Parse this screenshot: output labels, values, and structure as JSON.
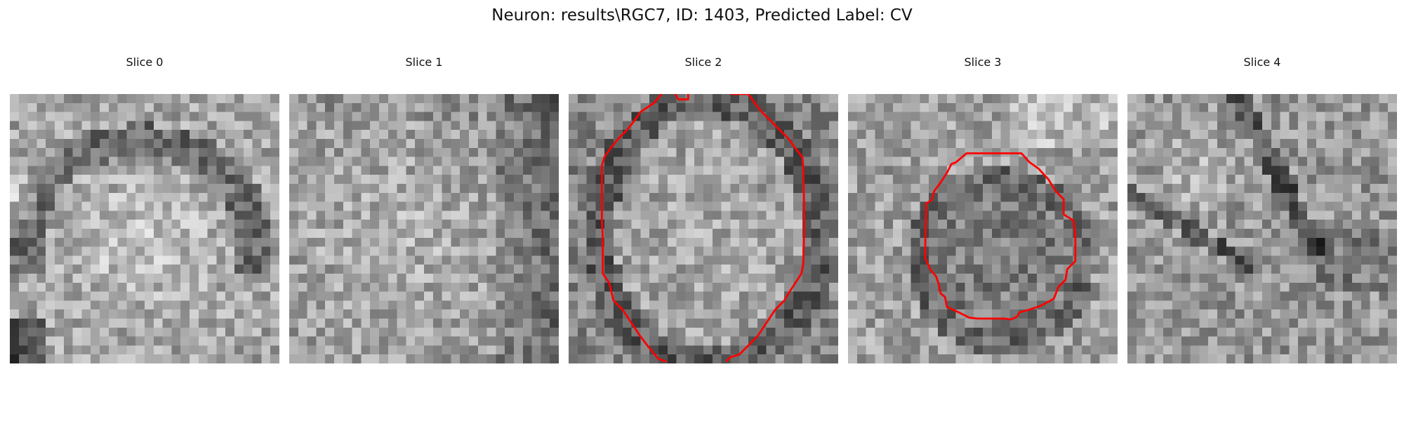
{
  "figure": {
    "title": "Neuron: results\\RGC7, ID: 1403, Predicted Label: CV",
    "contour_color": "#ff0000",
    "colormap": "gray",
    "grid_size": 30
  },
  "panels": [
    {
      "title": "Slice 0",
      "has_contour": false
    },
    {
      "title": "Slice 1",
      "has_contour": false
    },
    {
      "title": "Slice 2",
      "has_contour": true
    },
    {
      "title": "Slice 3",
      "has_contour": true
    },
    {
      "title": "Slice 4",
      "has_contour": false
    }
  ]
}
